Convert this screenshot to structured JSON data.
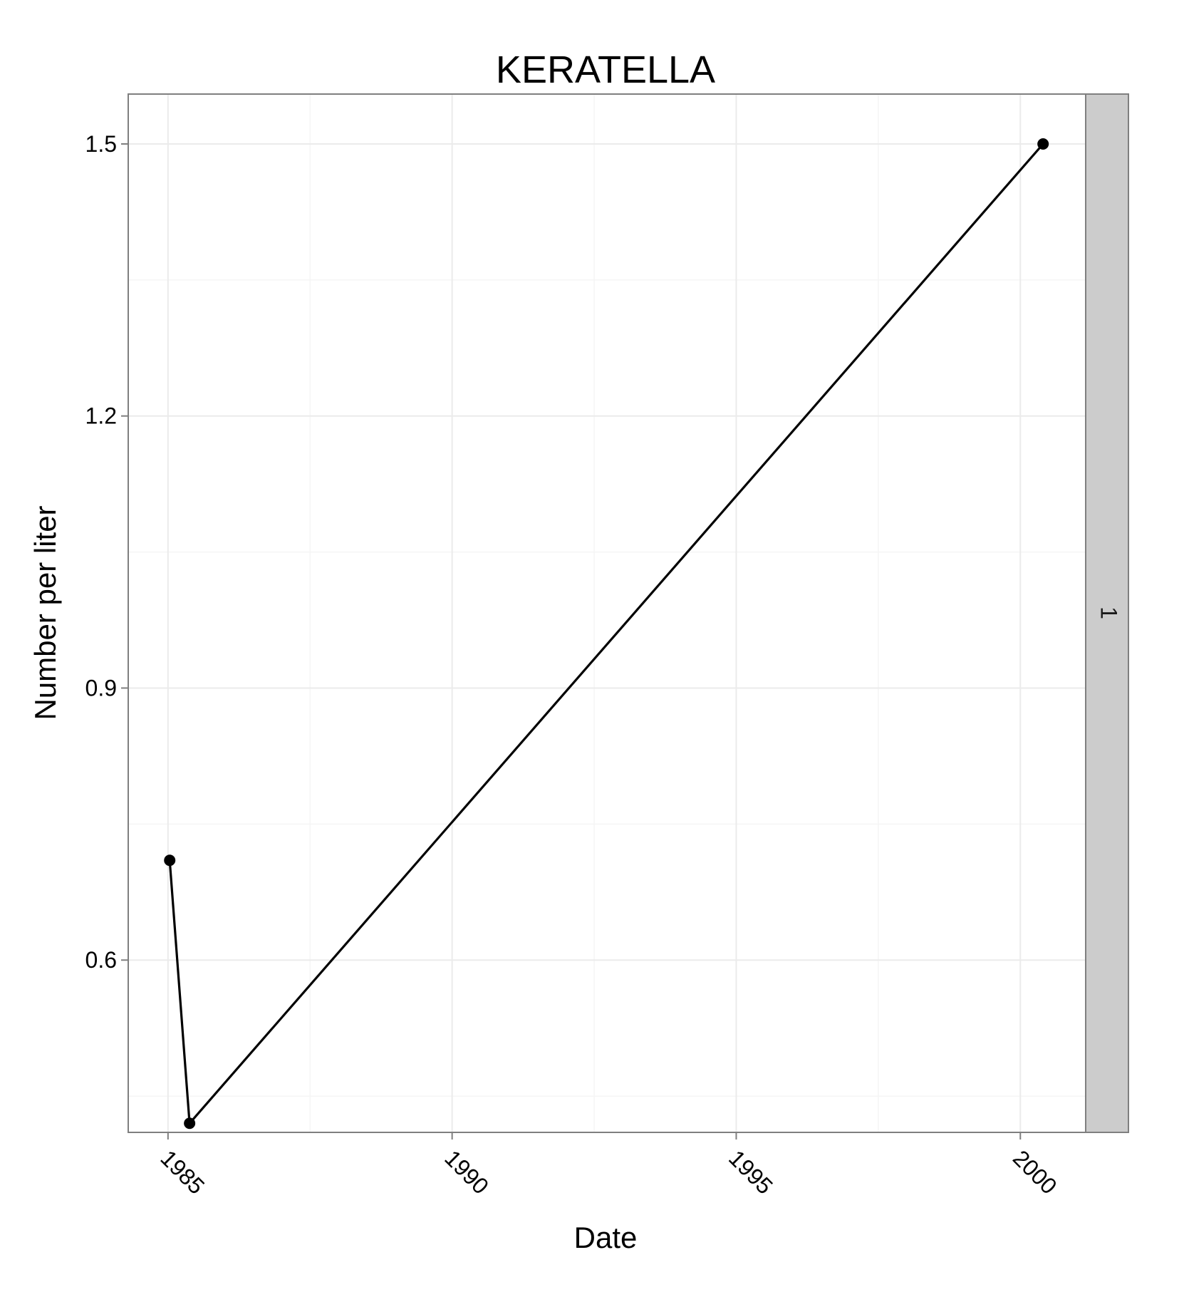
{
  "chart_data": {
    "type": "line",
    "title": "KERATELLA",
    "xlabel": "Date",
    "ylabel": "Number per liter",
    "facet_label": "1",
    "xlim": [
      1984.3,
      2001.15
    ],
    "ylim": [
      0.41,
      1.555
    ],
    "x_ticks": [
      1985,
      1990,
      1995,
      2000
    ],
    "x_tick_labels": [
      "1985",
      "1990",
      "1995",
      "2000"
    ],
    "x_minor_ticks": [
      1987.5,
      1992.5,
      1997.5
    ],
    "y_ticks": [
      0.6,
      0.9,
      1.2,
      1.5
    ],
    "y_tick_labels": [
      "0.6",
      "0.9",
      "1.2",
      "1.5"
    ],
    "y_minor_ticks": [
      0.45,
      0.75,
      1.05,
      1.35
    ],
    "grid": true,
    "series": [
      {
        "name": "KERATELLA",
        "x": [
          1985.03,
          1985.38,
          2000.4
        ],
        "y": [
          0.71,
          0.42,
          1.5
        ]
      }
    ],
    "colors": {
      "background": "#ffffff",
      "panel_border": "#7f7f7f",
      "grid_major": "#ebebeb",
      "grid_minor": "#f5f5f5",
      "strip_fill": "#cccccc",
      "line": "#000000",
      "point": "#000000"
    }
  }
}
